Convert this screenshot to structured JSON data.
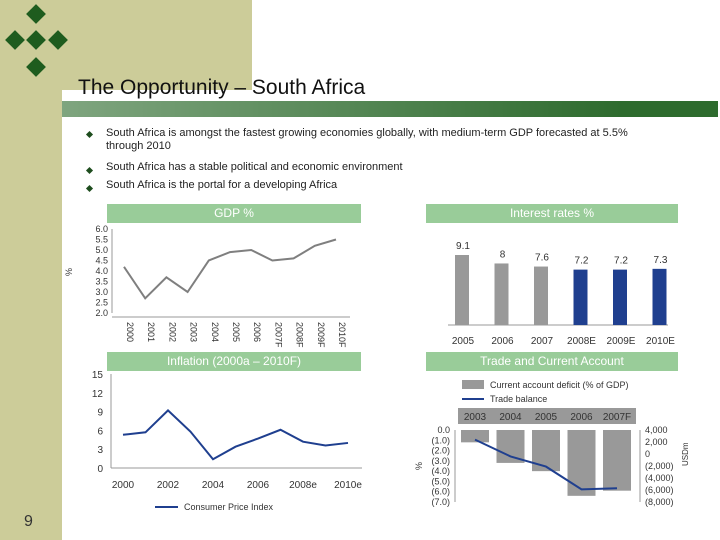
{
  "slide": {
    "title": "The Opportunity – South Africa",
    "page_number": "9",
    "colors": {
      "accent_dark": "#2e6b2e",
      "header_green": "#99cc99",
      "panel": "#cccc99"
    }
  },
  "bullets": [
    {
      "line1": "South Africa is amongst the fastest growing economies globally, with medium-term GDP forecasted at 5.5%",
      "line2": "through 2010"
    },
    {
      "line1": "South Africa has a stable political and economic environment"
    },
    {
      "line1": "South Africa is the portal for a developing Africa"
    }
  ],
  "chart_data": [
    {
      "type": "line",
      "title": "GDP %",
      "ylabel": "%",
      "categories": [
        "2000",
        "2001",
        "2002",
        "2003",
        "2004",
        "2005",
        "2006",
        "2007F",
        "2008F",
        "2009F",
        "2010F"
      ],
      "series": [
        {
          "values": [
            4.2,
            2.7,
            3.7,
            3.0,
            4.5,
            4.9,
            5.0,
            4.5,
            4.6,
            5.2,
            5.5
          ]
        }
      ],
      "yticks": [
        "6.0",
        "5.5",
        "5.0",
        "4.5",
        "4.0",
        "3.5",
        "3.0",
        "2.5",
        "2.0"
      ],
      "ylim": [
        2.0,
        6.0
      ]
    },
    {
      "type": "bar",
      "title": "Interest rates %",
      "categories": [
        "2005",
        "2006",
        "2007",
        "2008E",
        "2009E",
        "2010E"
      ],
      "values": [
        9.1,
        8.0,
        7.6,
        7.2,
        7.2,
        7.3
      ],
      "data_labels": [
        "9.1",
        "8",
        "7.6",
        "7.2",
        "7.2",
        "7.3"
      ]
    },
    {
      "type": "line",
      "title": "Inflation (2000a – 2010F)",
      "categories": [
        "2000",
        "2002",
        "2004",
        "2006",
        "2008e",
        "2010e"
      ],
      "x": [
        2000,
        2001,
        2002,
        2003,
        2004,
        2005,
        2006,
        2007,
        2008,
        2009,
        2010
      ],
      "series": [
        {
          "name": "Consumer Price Index",
          "values": [
            5.3,
            5.7,
            9.2,
            5.8,
            1.4,
            3.4,
            4.7,
            6.1,
            4.2,
            3.6,
            4.0
          ]
        }
      ],
      "yticks": [
        "15",
        "12",
        "9",
        "6",
        "3",
        "0"
      ],
      "ylim": [
        0,
        15
      ]
    },
    {
      "type": "bar",
      "title": "Trade and Current Account",
      "categories": [
        "2003",
        "2004",
        "2005",
        "2006",
        "2007F"
      ],
      "series": [
        {
          "name": "Current account deficit (% of GDP)",
          "values": [
            -1.2,
            -3.2,
            -4.0,
            -6.4,
            -5.9
          ]
        },
        {
          "name": "Trade balance",
          "values": [
            2400,
            -400,
            -2100,
            -5900,
            -5700
          ]
        }
      ],
      "y_left_ticks": [
        "0.0",
        "(1.0)",
        "(2.0)",
        "(3.0)",
        "(4.0)",
        "(5.0)",
        "(6.0)",
        "(7.0)"
      ],
      "y_right_ticks": [
        "4,000",
        "2,000",
        "0",
        "(2,000)",
        "(4,000)",
        "(6,000)",
        "(8,000)"
      ],
      "ylabel": "%",
      "y2label": "USDm"
    }
  ]
}
